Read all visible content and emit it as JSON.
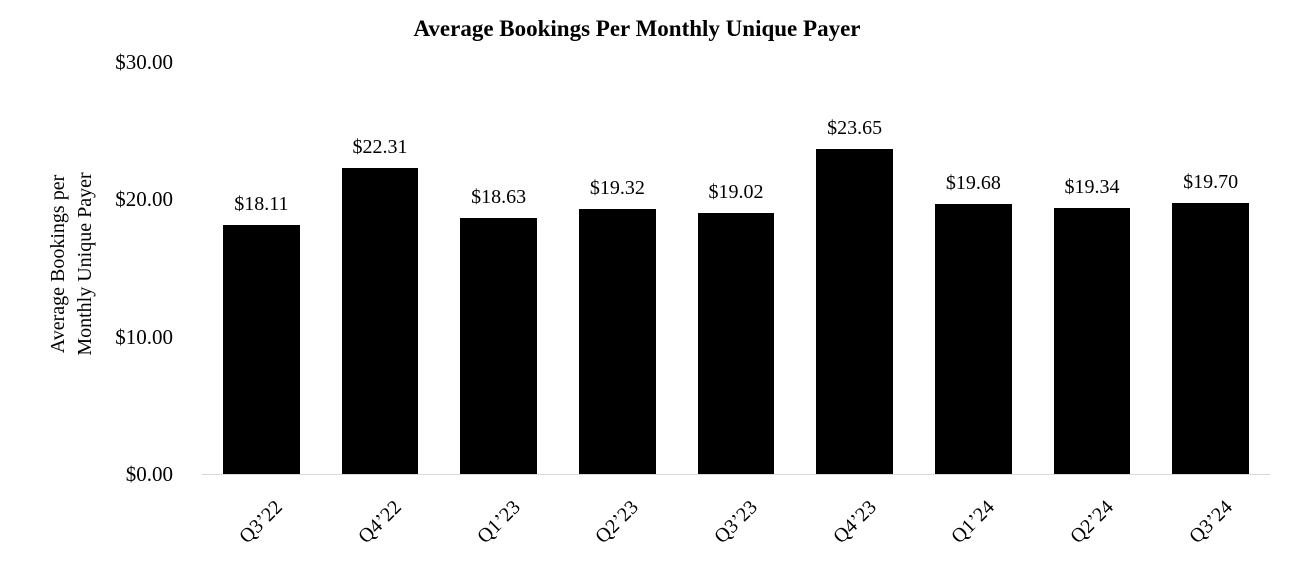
{
  "chart_data": {
    "type": "bar",
    "title": "Average Bookings Per Monthly Unique Payer",
    "ylabel_lines": [
      "Average Bookings per",
      "Monthly Unique Payer"
    ],
    "xlabel": "",
    "categories": [
      "Q3’22",
      "Q4’22",
      "Q1’23",
      "Q2’23",
      "Q3’23",
      "Q4’23",
      "Q1’24",
      "Q2’24",
      "Q3’24"
    ],
    "values": [
      18.11,
      22.31,
      18.63,
      19.32,
      19.02,
      23.65,
      19.68,
      19.34,
      19.7
    ],
    "value_labels": [
      "$18.11",
      "$22.31",
      "$18.63",
      "$19.32",
      "$19.02",
      "$23.65",
      "$19.68",
      "$19.34",
      "$19.70"
    ],
    "y_ticks": [
      {
        "value": 0,
        "label": "$0.00"
      },
      {
        "value": 10,
        "label": "$10.00"
      },
      {
        "value": 20,
        "label": "$20.00"
      },
      {
        "value": 30,
        "label": "$30.00"
      }
    ],
    "ylim": [
      0,
      30
    ],
    "grid": false,
    "legend": "none",
    "bar_color": "#000000",
    "axis_line_color": "#d9d9d9",
    "background_color": "#ffffff"
  }
}
